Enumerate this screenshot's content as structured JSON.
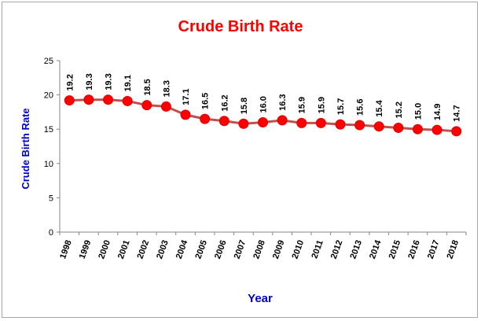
{
  "chart_data": {
    "type": "line",
    "title": "Crude Birth Rate",
    "xlabel": "Year",
    "ylabel": "Crude Birth Rate",
    "categories": [
      "1998",
      "1999",
      "2000",
      "2001",
      "2002",
      "2003",
      "2004",
      "2005",
      "2006",
      "2007",
      "2008",
      "2009",
      "2010",
      "2011",
      "2012",
      "2013",
      "2014",
      "2015",
      "2016",
      "2017",
      "2018"
    ],
    "series": [
      {
        "values": [
          19.2,
          19.3,
          19.3,
          19.1,
          18.5,
          18.3,
          17.1,
          16.5,
          16.2,
          15.8,
          16.0,
          16.3,
          15.9,
          15.9,
          15.7,
          15.6,
          15.4,
          15.2,
          15.0,
          14.9,
          14.7
        ],
        "line_color": "#c0504d",
        "marker_color": "#ff0000"
      }
    ],
    "yticks": [
      "0",
      "5",
      "10",
      "15",
      "20",
      "25"
    ],
    "ylim": [
      0,
      25
    ],
    "grid": false,
    "legend": "none",
    "data_labels": true,
    "colors": {
      "title": "#ff0000",
      "axis_title": "#0000cc",
      "line": "#c0504d",
      "marker": "#ff0000"
    }
  }
}
